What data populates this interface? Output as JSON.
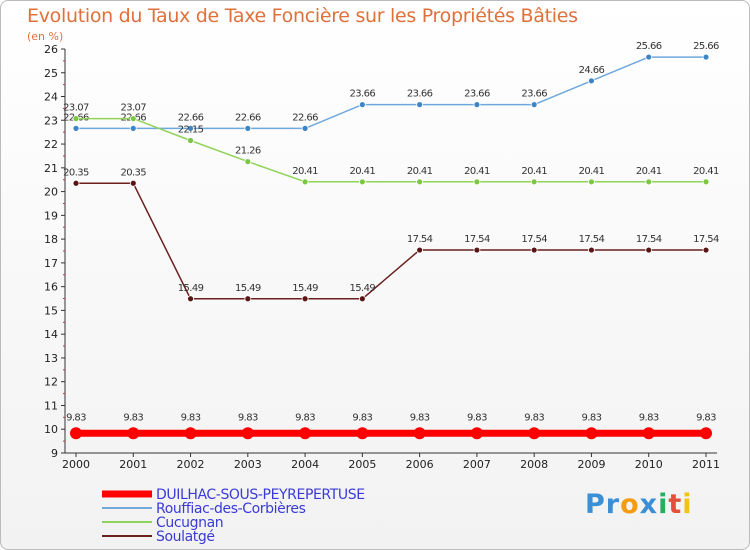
{
  "logo": {
    "text_parts": [
      "Pr",
      "o",
      "x",
      "i",
      "t",
      "i"
    ]
  },
  "chart_data": {
    "type": "line",
    "title": "Evolution du Taux de Taxe Foncière sur les Propriétés Bâties",
    "ylabel": "(en %)",
    "xlabel": "",
    "x": [
      "2000",
      "2001",
      "2002",
      "2003",
      "2004",
      "2005",
      "2006",
      "2007",
      "2008",
      "2009",
      "2010",
      "2011"
    ],
    "ylim": [
      9,
      26
    ],
    "yticks": [
      9,
      10,
      11,
      12,
      13,
      14,
      15,
      16,
      17,
      18,
      19,
      20,
      21,
      22,
      23,
      24,
      25,
      26
    ],
    "grid": false,
    "legend_position": "bottom-left",
    "series": [
      {
        "name": "DUILHAC-SOUS-PEYREPERTUSE",
        "color": "#ff0000",
        "marker": "#ff0000",
        "thick": true,
        "values": [
          9.83,
          9.83,
          9.83,
          9.83,
          9.83,
          9.83,
          9.83,
          9.83,
          9.83,
          9.83,
          9.83,
          9.83
        ],
        "labels": [
          "9.83",
          "9.83",
          "9.83",
          "9.83",
          "9.83",
          "9.83",
          "9.83",
          "9.83",
          "9.83",
          "9.83",
          "9.83",
          "9.83"
        ]
      },
      {
        "name": "Rouffiac-des-Corbières",
        "color": "#6fa8dc",
        "marker": "#3d85c6",
        "thick": false,
        "values": [
          22.66,
          22.66,
          22.66,
          22.66,
          22.66,
          23.66,
          23.66,
          23.66,
          23.66,
          24.66,
          25.66,
          25.66
        ],
        "labels": [
          "22.66",
          "22.66",
          "22.66",
          "22.66",
          "22.66",
          "23.66",
          "23.66",
          "23.66",
          "23.66",
          "24.66",
          "25.66",
          "25.66"
        ]
      },
      {
        "name": "Cucugnan",
        "color": "#8fd35a",
        "marker": "#7cc742",
        "thick": false,
        "values": [
          23.07,
          23.07,
          22.15,
          21.26,
          20.41,
          20.41,
          20.41,
          20.41,
          20.41,
          20.41,
          20.41,
          20.41
        ],
        "labels": [
          "23.07",
          "23.07",
          "22.15",
          "21.26",
          "20.41",
          "20.41",
          "20.41",
          "20.41",
          "20.41",
          "20.41",
          "20.41",
          "20.41"
        ]
      },
      {
        "name": "Soulatgé",
        "color": "#6b1f1f",
        "marker": "#5a1515",
        "thick": false,
        "values": [
          20.35,
          20.35,
          15.49,
          15.49,
          15.49,
          15.49,
          17.54,
          17.54,
          17.54,
          17.54,
          17.54,
          17.54
        ],
        "labels": [
          "20.35",
          "20.35",
          "15.49",
          "15.49",
          "15.49",
          "15.49",
          "17.54",
          "17.54",
          "17.54",
          "17.54",
          "17.54",
          "17.54"
        ]
      }
    ]
  }
}
